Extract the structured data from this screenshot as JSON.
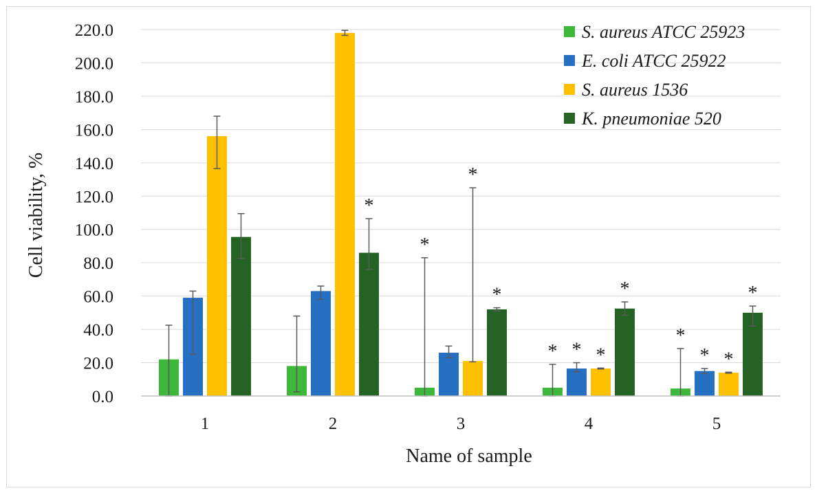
{
  "chart_data": {
    "type": "bar",
    "title": "",
    "xlabel": "Name of sample",
    "ylabel": "Cell viability, %",
    "ylim": [
      0,
      220
    ],
    "ytick_step": 20,
    "ytick_labels": [
      "0.0",
      "20.0",
      "40.0",
      "60.0",
      "80.0",
      "100.0",
      "120.0",
      "140.0",
      "160.0",
      "180.0",
      "200.0",
      "220.0"
    ],
    "grid": true,
    "legend_position": "top-right",
    "categories": [
      "1",
      "2",
      "3",
      "4",
      "5"
    ],
    "series": [
      {
        "name": "S. aureus ATCC 25923",
        "color": "#3db83a",
        "values": [
          22,
          18,
          5,
          5,
          4.5
        ],
        "error_low": [
          22,
          15.5,
          5,
          5,
          4.5
        ],
        "error_high": [
          20.5,
          30,
          78,
          14,
          24
        ],
        "significant": [
          false,
          false,
          true,
          true,
          true
        ]
      },
      {
        "name": "E. coli ATCC 25922",
        "color": "#2670c4",
        "values": [
          59,
          63,
          26,
          16.5,
          15
        ],
        "error_low": [
          34,
          5,
          3,
          2,
          1.5
        ],
        "error_high": [
          4,
          3,
          4,
          3.5,
          1.5
        ],
        "significant": [
          false,
          false,
          false,
          true,
          true
        ]
      },
      {
        "name": "S. aureus 1536",
        "color": "#ffc000",
        "values": [
          156,
          218,
          21,
          16.5,
          14
        ],
        "error_low": [
          19.5,
          1.5,
          0.5,
          0.3,
          0.3
        ],
        "error_high": [
          12,
          1.5,
          104,
          0.3,
          0.3
        ],
        "significant": [
          false,
          false,
          true,
          true,
          true
        ]
      },
      {
        "name": "K. pneumoniae 520",
        "color": "#246324",
        "values": [
          95.5,
          86,
          52,
          52.5,
          50
        ],
        "error_low": [
          13,
          10,
          1,
          4,
          8
        ],
        "error_high": [
          14,
          20.5,
          1,
          4,
          4
        ],
        "significant": [
          false,
          true,
          true,
          true,
          true
        ]
      }
    ],
    "significance_mark": "*"
  }
}
